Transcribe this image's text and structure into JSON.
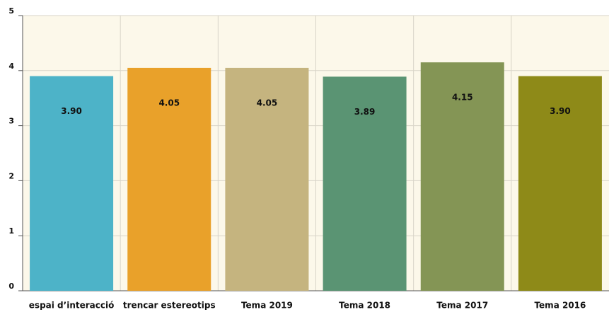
{
  "chart_data": {
    "type": "bar",
    "categories": [
      "espai d’interacció",
      "trencar estereotips",
      "Tema 2019",
      "Tema 2018",
      "Tema 2017",
      "Tema 2016"
    ],
    "values": [
      3.9,
      4.05,
      4.05,
      3.89,
      4.15,
      3.9
    ],
    "value_labels": [
      "3.90",
      "4.05",
      "4.05",
      "3.89",
      "4.15",
      "3.90"
    ],
    "colors": [
      "#4db3c8",
      "#e9a12a",
      "#c5b47f",
      "#5a9473",
      "#849555",
      "#8e8a18"
    ],
    "ylim": [
      0,
      5
    ],
    "yticks": [
      0,
      1,
      2,
      3,
      4,
      5
    ],
    "grid": true
  }
}
